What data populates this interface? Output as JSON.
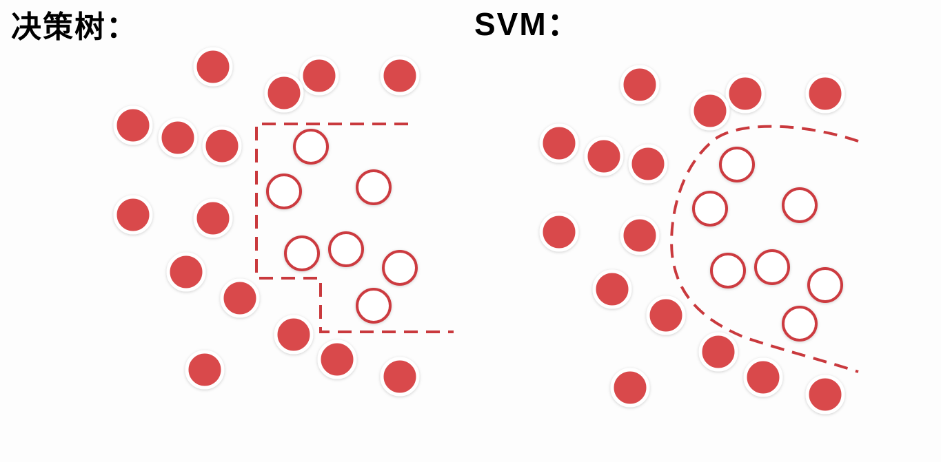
{
  "panels": {
    "left": {
      "title": "决策树：",
      "boundary": "dashed-staircase"
    },
    "right": {
      "title": "SVM：",
      "boundary": "dashed-curve"
    }
  },
  "colors": {
    "point": "#d94a4c",
    "point_outline": "#ffffff",
    "hollow_stroke": "#cc3b3f",
    "hollow_fill": "#ffffff",
    "boundary": "#c9393d"
  }
}
